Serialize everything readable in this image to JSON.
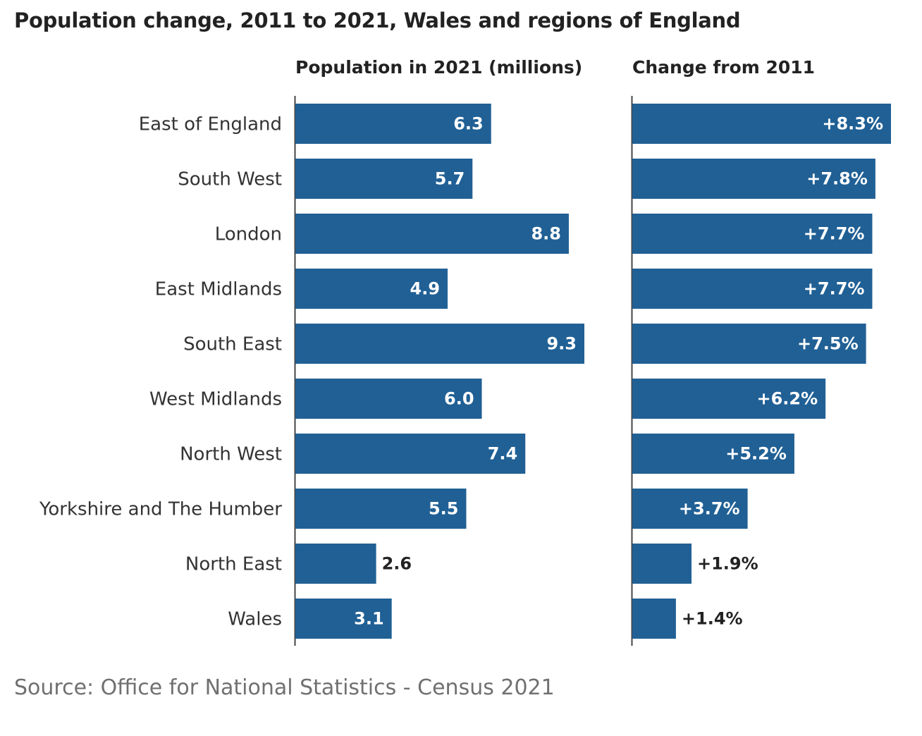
{
  "chart_data": {
    "type": "bar",
    "title": "Population change, 2011 to 2021, Wales and regions of England",
    "source": "Source: Office for National Statistics - Census 2021",
    "categories": [
      "East of England",
      "South West",
      "London",
      "East Midlands",
      "South East",
      "West Midlands",
      "North West",
      "Yorkshire and The Humber",
      "North East",
      "Wales"
    ],
    "series": [
      {
        "name": "Population in 2021 (millions)",
        "values": [
          6.3,
          5.7,
          8.8,
          4.9,
          9.3,
          6.0,
          7.4,
          5.5,
          2.6,
          3.1
        ],
        "labels": [
          "6.3",
          "5.7",
          "8.8",
          "4.9",
          "9.3",
          "6.0",
          "7.4",
          "5.5",
          "2.6",
          "3.1"
        ]
      },
      {
        "name": "Change from 2011",
        "values": [
          8.3,
          7.8,
          7.7,
          7.7,
          7.5,
          6.2,
          5.2,
          3.7,
          1.9,
          1.4
        ],
        "labels": [
          "+8.3%",
          "+7.8%",
          "+7.7%",
          "+7.7%",
          "+7.5%",
          "+6.2%",
          "+5.2%",
          "+3.7%",
          "+1.9%",
          "+1.4%"
        ]
      }
    ],
    "orientation": "horizontal",
    "grid": false,
    "bar_color": "#206095",
    "label_color_inside": "#ffffff",
    "label_color_outside": "#222222"
  }
}
